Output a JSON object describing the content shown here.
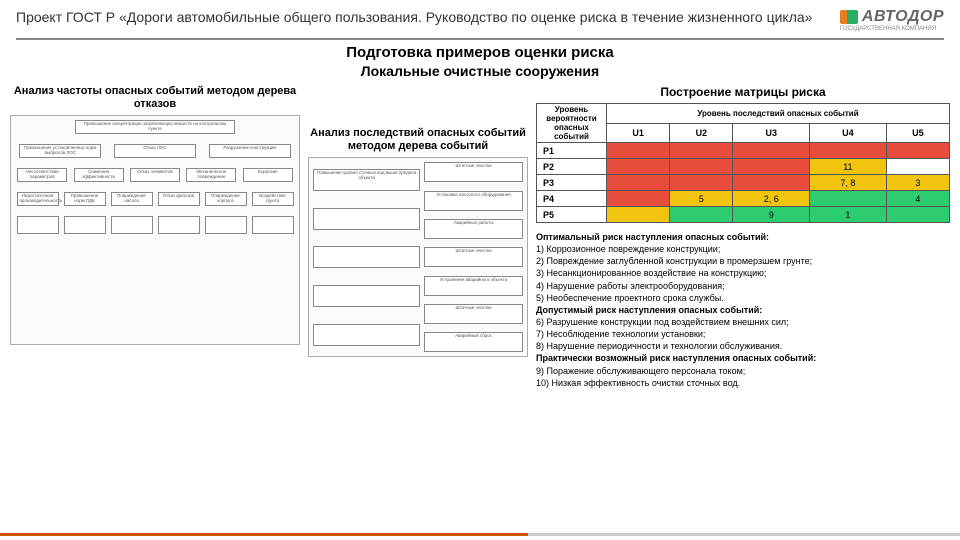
{
  "header": {
    "title": "Проект ГОСТ Р «Дороги автомобильные общего пользования. Руководство по оценке риска в течение жизненного цикла»",
    "logo_text": "АВТОДОР",
    "logo_sub": "ГОСУДАРСТВЕННАЯ КОМПАНИЯ"
  },
  "titles": {
    "section": "Подготовка примеров оценки риска",
    "subsection": "Локальные очистные сооружения",
    "fault_tree": "Анализ частоты опасных событий методом дерева отказов",
    "event_tree": "Анализ последствий опасных событий методом дерева событий",
    "matrix": "Построение матрицы риска"
  },
  "matrix": {
    "header_prob": "Уровень вероятности опасных событий",
    "header_cons": "Уровень последствий опасных событий",
    "cols": [
      "U1",
      "U2",
      "U3",
      "U4",
      "U5"
    ],
    "rows": [
      "P1",
      "P2",
      "P3",
      "P4",
      "P5"
    ],
    "colors": {
      "red": "#e74c3c",
      "yellow": "#f1c40f",
      "green": "#2ecc71",
      "blank": "#ffffff"
    },
    "cells": [
      [
        {
          "c": "red",
          "t": ""
        },
        {
          "c": "red",
          "t": ""
        },
        {
          "c": "red",
          "t": ""
        },
        {
          "c": "red",
          "t": ""
        },
        {
          "c": "red",
          "t": ""
        }
      ],
      [
        {
          "c": "red",
          "t": ""
        },
        {
          "c": "red",
          "t": ""
        },
        {
          "c": "red",
          "t": ""
        },
        {
          "c": "yellow",
          "t": "11"
        },
        {
          "c": "blank",
          "t": ""
        }
      ],
      [
        {
          "c": "red",
          "t": ""
        },
        {
          "c": "red",
          "t": ""
        },
        {
          "c": "red",
          "t": ""
        },
        {
          "c": "yellow",
          "t": "7, 8"
        },
        {
          "c": "yellow",
          "t": "3"
        }
      ],
      [
        {
          "c": "red",
          "t": ""
        },
        {
          "c": "yellow",
          "t": "5"
        },
        {
          "c": "yellow",
          "t": "2, 6"
        },
        {
          "c": "green",
          "t": ""
        },
        {
          "c": "green",
          "t": "4"
        }
      ],
      [
        {
          "c": "yellow",
          "t": ""
        },
        {
          "c": "green",
          "t": ""
        },
        {
          "c": "green",
          "t": "9"
        },
        {
          "c": "green",
          "t": "1"
        },
        {
          "c": "green",
          "t": ""
        }
      ]
    ]
  },
  "risk": {
    "opt_head": "Оптимальный риск наступления опасных событий:",
    "opt": [
      "1) Коррозионное повреждение конструкции;",
      "2) Повреждение заглубленной конструкции в промерзшем грунте;",
      "3) Несанкционированное воздействие на конструкцию;",
      "4) Нарушение работы электрооборудования;",
      "5) Необеспечение проектного срока службы."
    ],
    "dop_head": "Допустимый риск наступления опасных событий:",
    "dop": [
      "6) Разрушение конструкции под воздействием внешних сил;",
      "7) Несоблюдение технологии установки;",
      "8) Нарушение периодичности и технологии обслуживания."
    ],
    "prak_head": "Практически возможный риск наступления опасных событий:",
    "prak": [
      "9) Поражение обслуживающего персонала током;",
      "10) Низкая эффективность очистки сточных вод."
    ]
  },
  "tree_labels": {
    "top": "Превышение концентрации загрязняющих веществ на контрольном пункте",
    "r2": [
      "Превышение установленных норм выбросов ЛОС",
      "Отказ ЛОС",
      "Разрушение конструкции"
    ],
    "r3": [
      "Несоответствие параметров",
      "Снижение эффективности",
      "Отказ элементов",
      "Механическое повреждение",
      "Коррозия"
    ],
    "r4": [
      "Недостаточная производительность",
      "Превышение норм ПДК",
      "Повреждение насоса",
      "Отказ фильтра",
      "Повреждение корпуса",
      "Воздействие грунта"
    ],
    "ev_root": "Повышение уровня сточных вод выше предела объекта",
    "ev_col": [
      "Штатные очистки",
      "Установка насосного оборудования",
      "Аварийные работы",
      "Штатные очистки",
      "Устранение аварийного объекта",
      "Штатные очистки",
      "Аварийный сброс"
    ]
  }
}
